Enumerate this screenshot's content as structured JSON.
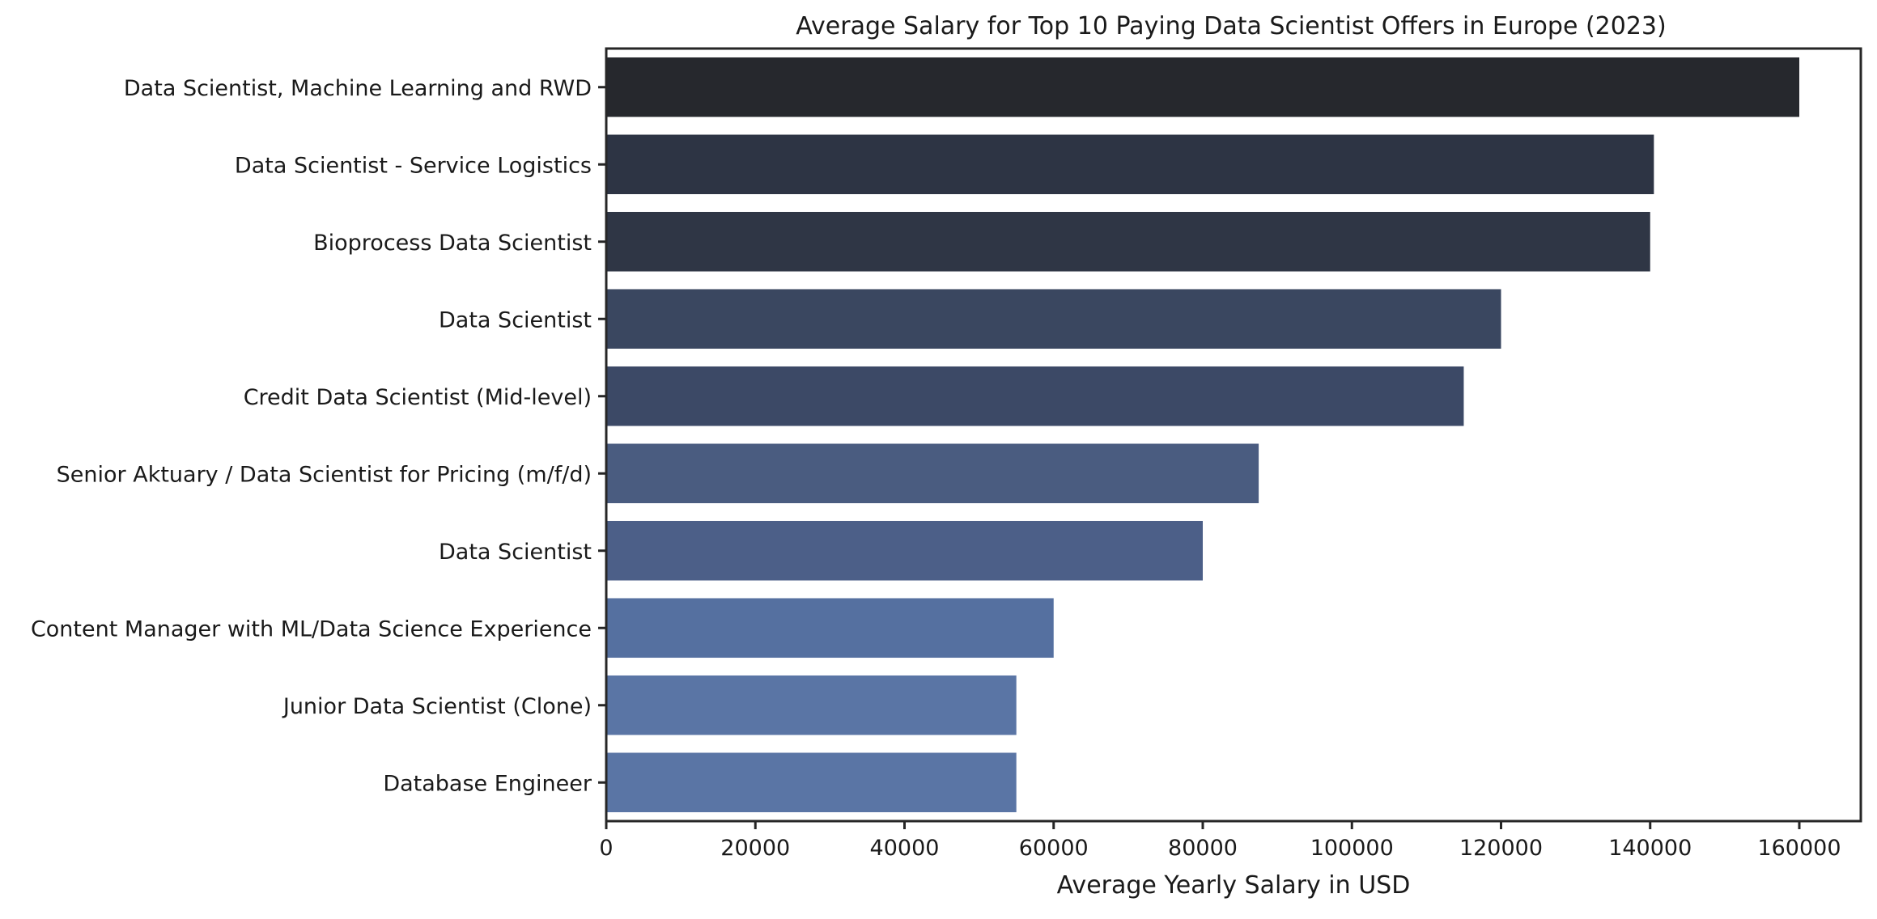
{
  "chart_data": {
    "type": "bar",
    "orientation": "horizontal",
    "title": "Average Salary for Top 10 Paying Data Scientist Offers in Europe (2023)",
    "xlabel": "Average Yearly Salary in USD",
    "ylabel": "",
    "xlim": [
      0,
      168000
    ],
    "xticks": [
      0,
      20000,
      40000,
      60000,
      80000,
      100000,
      120000,
      140000,
      160000
    ],
    "xtick_labels": [
      "0",
      "20000",
      "40000",
      "60000",
      "80000",
      "100000",
      "120000",
      "140000",
      "160000"
    ],
    "grid": false,
    "categories": [
      "Data Scientist, Machine Learning and RWD",
      "Data Scientist - Service Logistics",
      "Bioprocess Data Scientist",
      "Data Scientist",
      "Credit Data Scientist (Mid-level)",
      "Senior Aktuary / Data Scientist for Pricing (m/f/d)",
      "Data Scientist",
      "Content Manager with ML/Data Science Experience",
      "Junior Data Scientist (Clone)",
      "Database Engineer"
    ],
    "values": [
      160000,
      140500,
      140000,
      120000,
      115000,
      87500,
      80000,
      60000,
      55000,
      55000
    ],
    "colors": [
      "#26282d",
      "#2d3444",
      "#2f3645",
      "#3a4760",
      "#3c4966",
      "#4a5c80",
      "#4c5f88",
      "#5570a0",
      "#5a75a5",
      "#5a75a5"
    ]
  }
}
